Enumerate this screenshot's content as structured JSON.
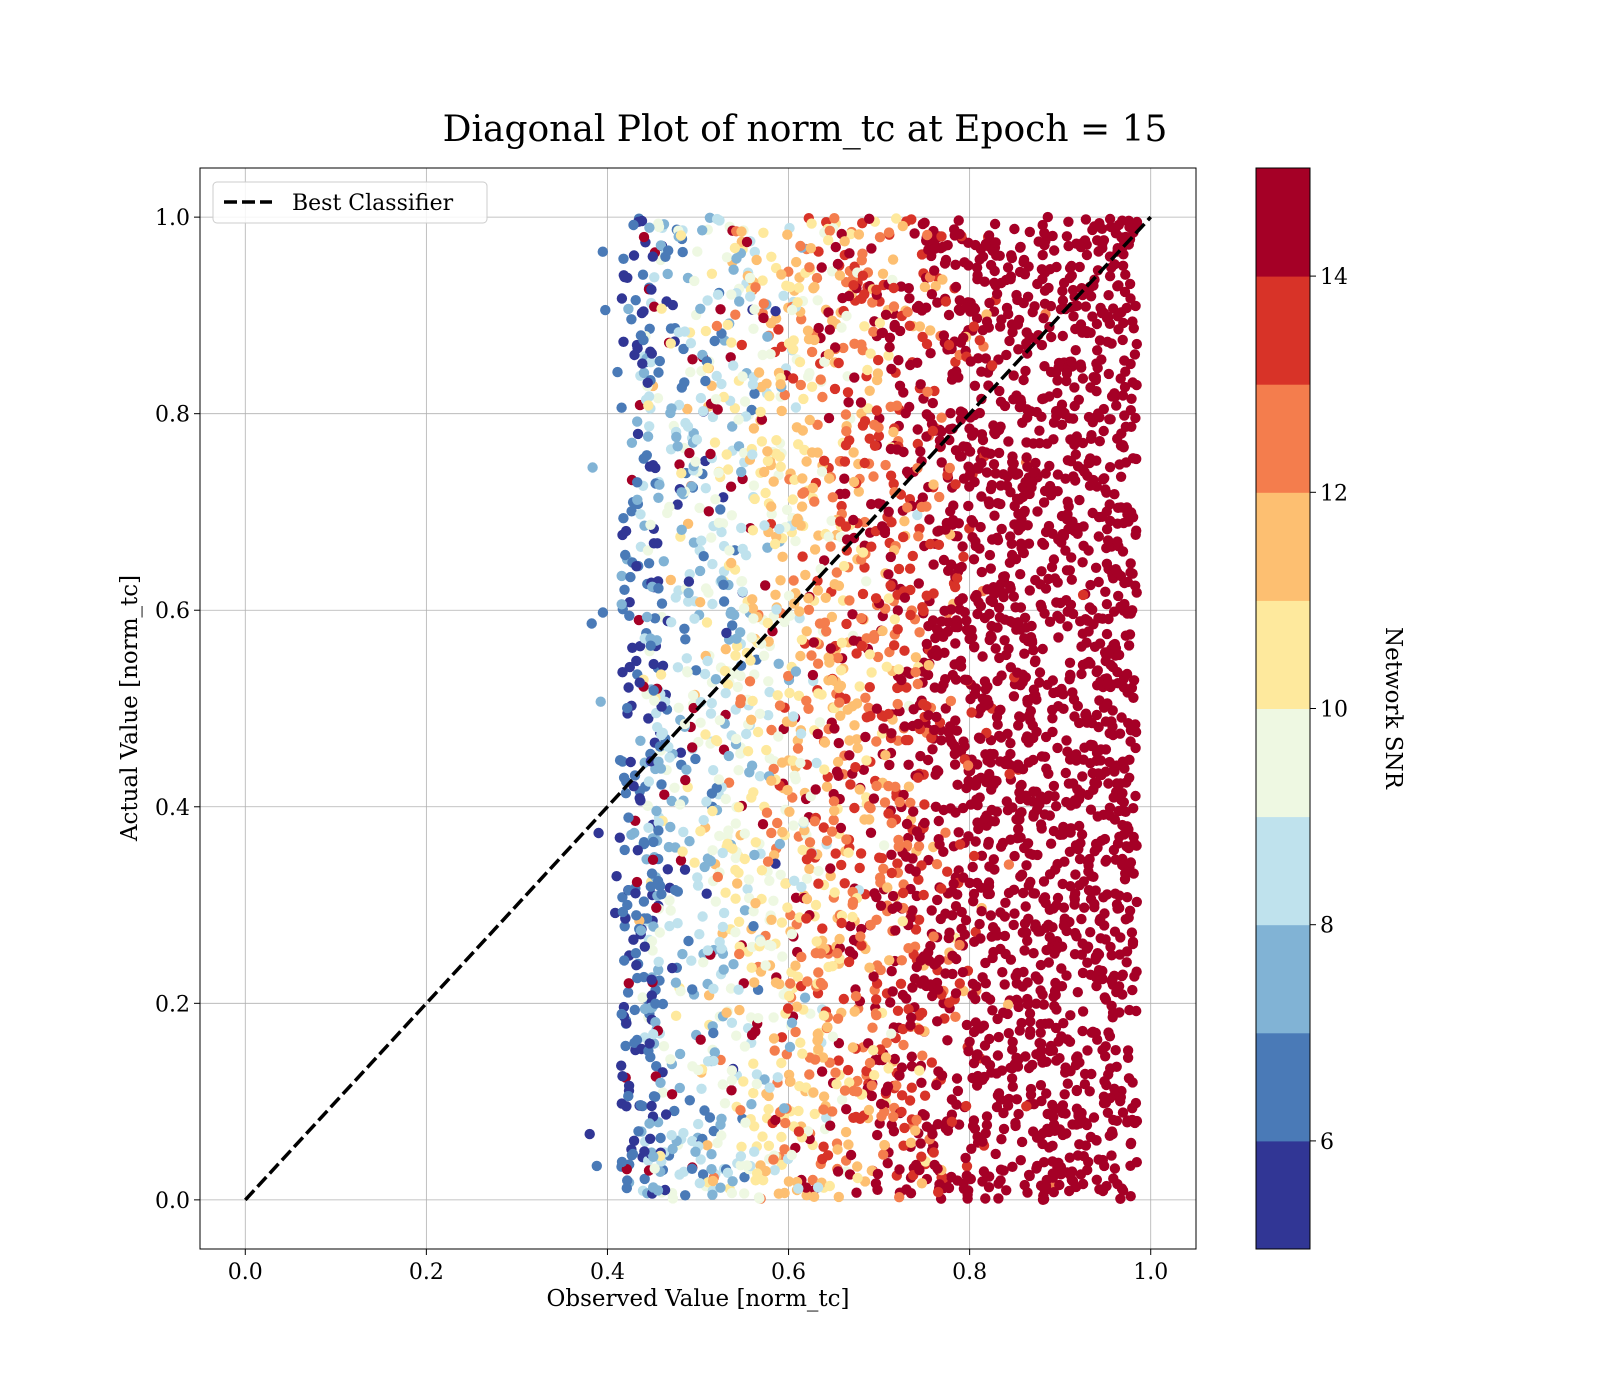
{
  "chart_data": {
    "type": "scatter",
    "title": "Diagonal Plot of norm_tc at Epoch = 15",
    "xlabel": "Observed Value [norm_tc]",
    "ylabel": "Actual Value [norm_tc]",
    "xlim": [
      -0.05,
      1.05
    ],
    "ylim": [
      -0.05,
      1.05
    ],
    "xticks": [
      "0.0",
      "0.2",
      "0.4",
      "0.6",
      "0.8",
      "1.0"
    ],
    "yticks": [
      "0.0",
      "0.2",
      "0.4",
      "0.6",
      "0.8",
      "1.0"
    ],
    "grid": true,
    "legend": {
      "placement": "upper-left",
      "entries": [
        "Best Classifier"
      ]
    },
    "reference_line": {
      "name": "Best Classifier",
      "style": "dashed",
      "color": "#000000",
      "x": [
        0.0,
        1.0
      ],
      "y": [
        0.0,
        1.0
      ]
    },
    "scatter_points": {
      "observed_range": [
        0.38,
        1.0
      ],
      "actual_range": [
        0.0,
        1.0
      ],
      "color_variable": "Network SNR",
      "trend": "Network SNR increases with observed value: ~6 near 0.42, ~8-10 at 0.45-0.55, ~11-13 at 0.6-0.7, 14+ above 0.72"
    },
    "colorbar": {
      "label": "Network SNR",
      "range": [
        5,
        15
      ],
      "ticks": [
        "6",
        "8",
        "10",
        "12",
        "14"
      ],
      "tick_values": [
        6,
        8,
        10,
        12,
        14
      ],
      "boundaries": [
        5,
        6,
        7,
        8,
        9,
        10,
        11,
        12,
        13,
        14,
        15
      ],
      "colors": [
        "#313695",
        "#4a7ab7",
        "#81b3d5",
        "#bfe2ed",
        "#eef8e2",
        "#fee99d",
        "#fdbf71",
        "#f47d4d",
        "#d83328",
        "#a50026"
      ]
    }
  }
}
